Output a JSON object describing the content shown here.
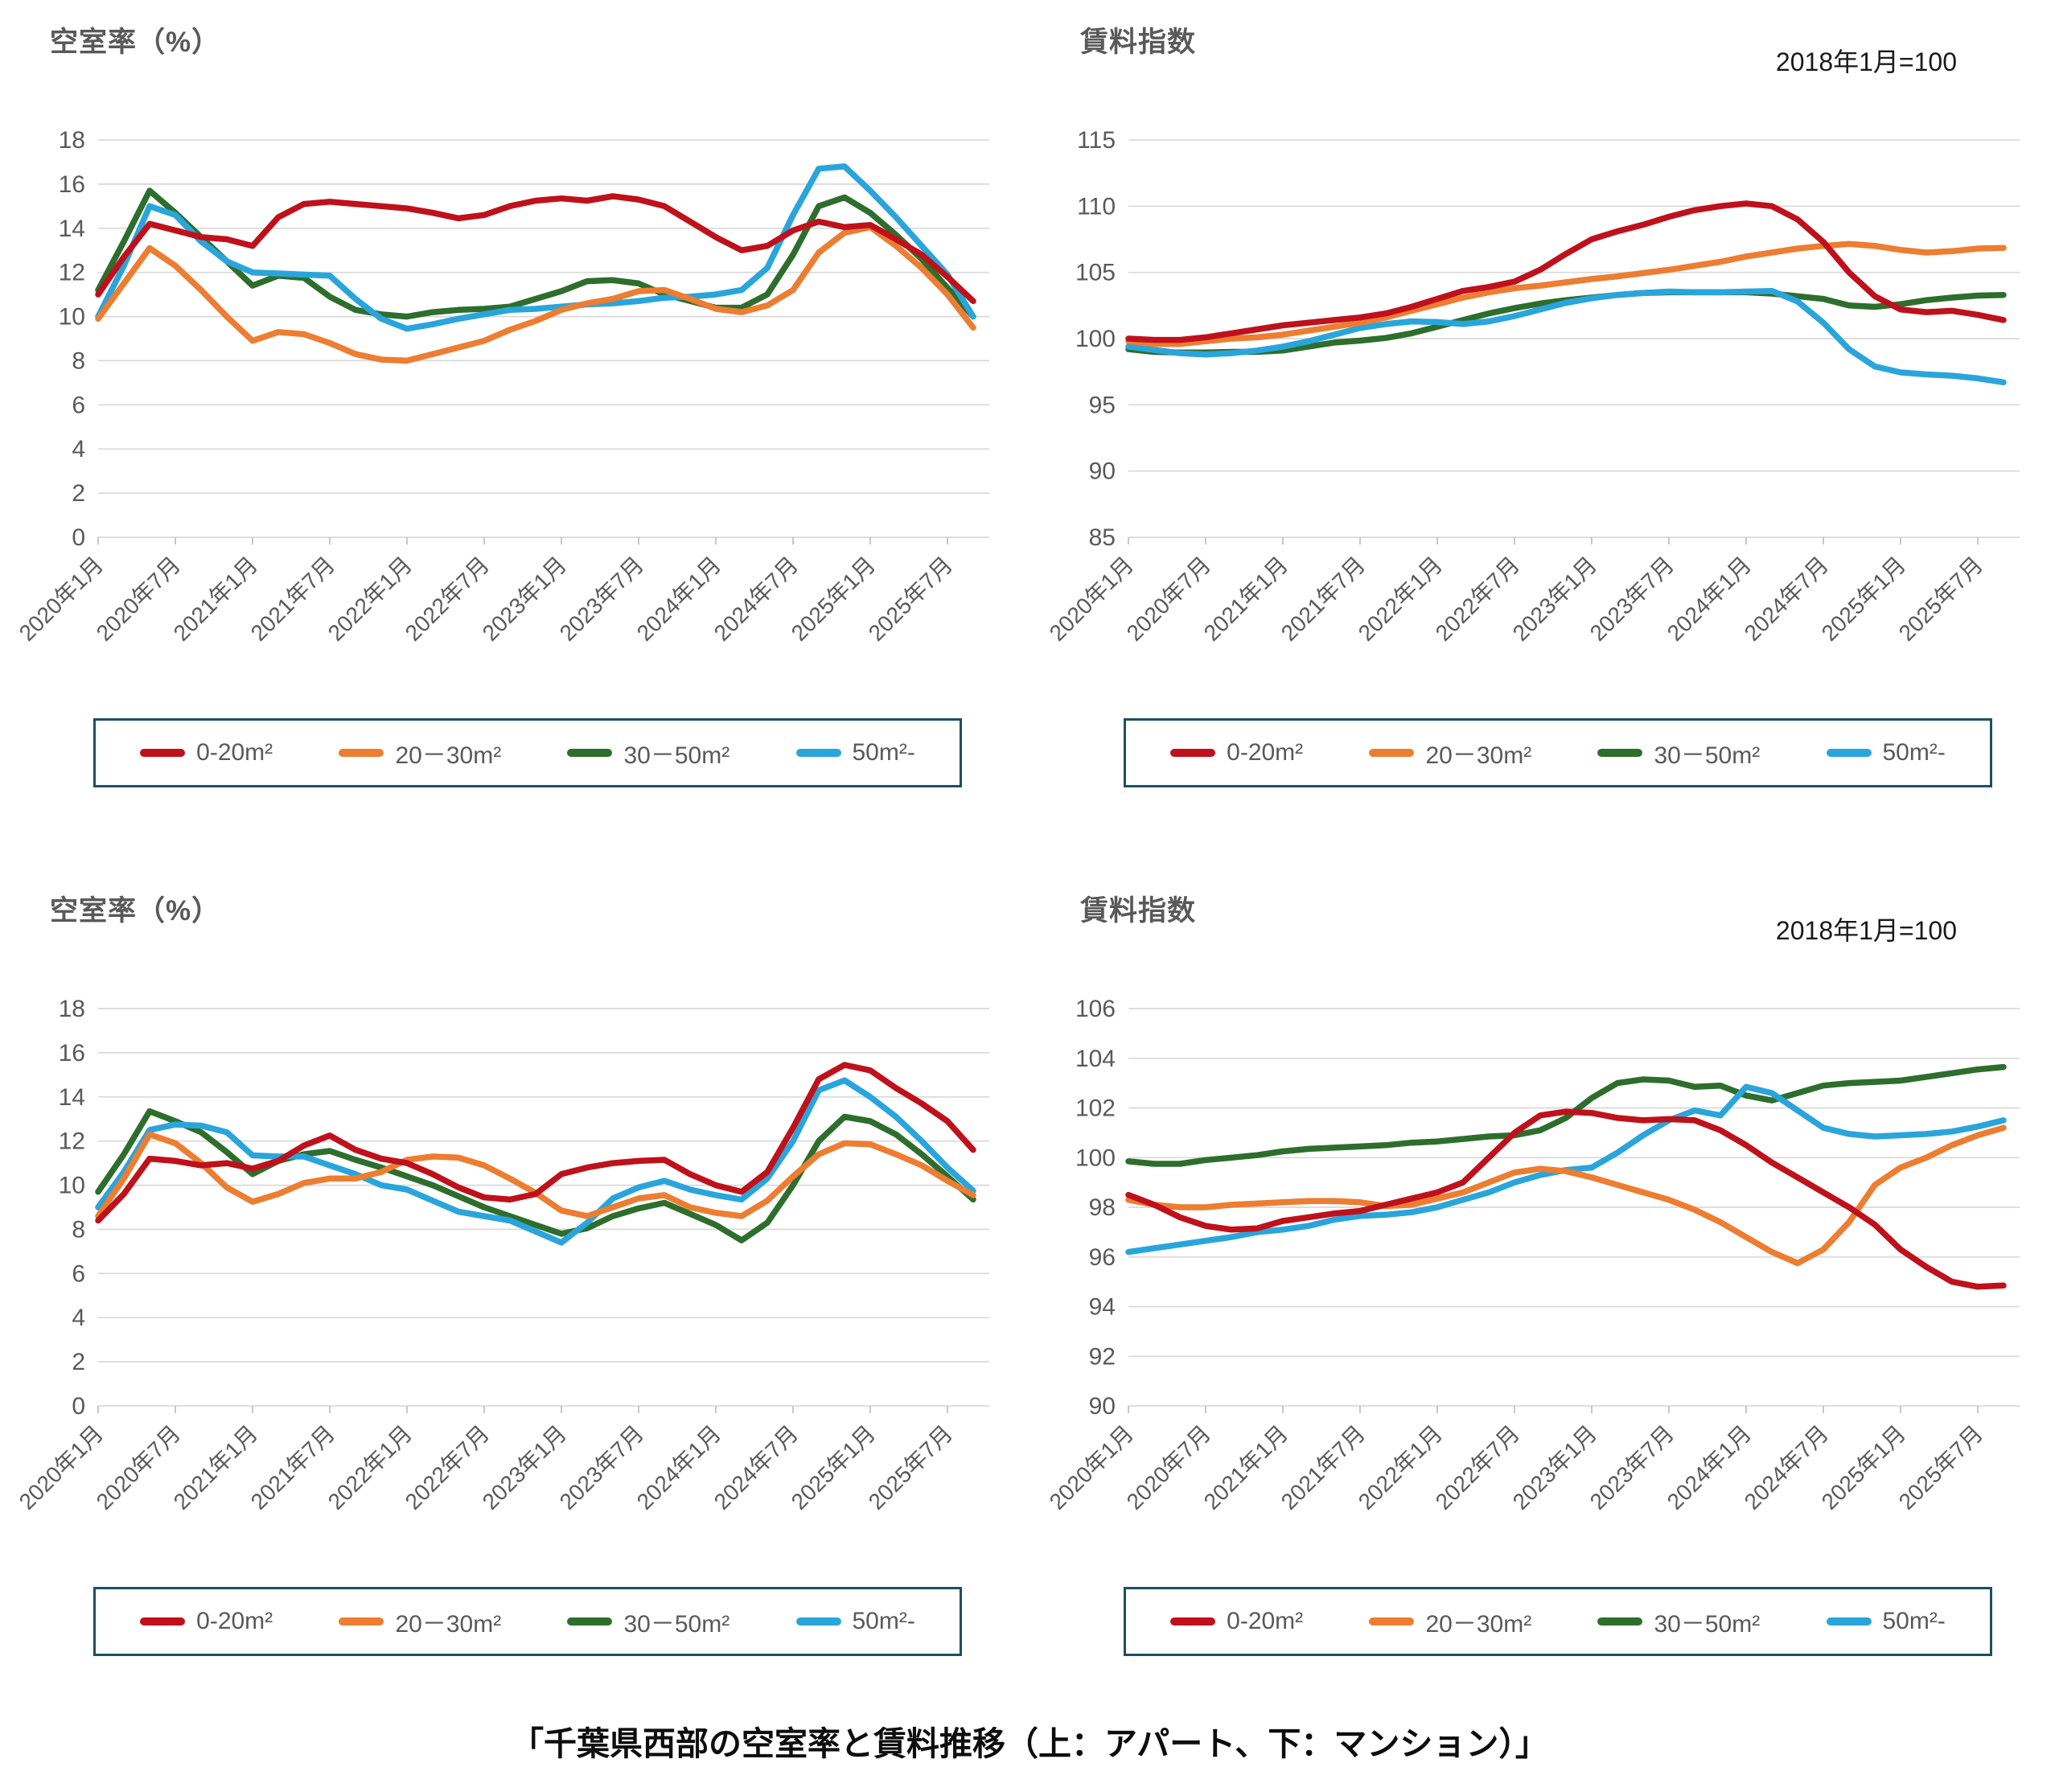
{
  "page": {
    "caption": "「千葉県西部の空室率と賃料推移（上：アパート、下：マンション）」"
  },
  "colors": {
    "red": "#BF111B",
    "orange": "#ED7D31",
    "green": "#2D6E2D",
    "blue": "#2AA5DC",
    "grid": "#D9D9D9",
    "axis_line": "#BFBFBF",
    "axis_text": "#595959",
    "title_text": "#595959",
    "note_text": "#1a1a1a",
    "legend_border": "#1E4F63"
  },
  "legend_items": [
    {
      "color_key": "red",
      "label": "0-20m²"
    },
    {
      "color_key": "orange",
      "label": "20－30m²"
    },
    {
      "color_key": "green",
      "label": "30－50m²"
    },
    {
      "color_key": "blue",
      "label": "50m²-"
    }
  ],
  "x_tick_labels": [
    "2020年1月",
    "2020年7月",
    "2021年1月",
    "2021年7月",
    "2022年1月",
    "2022年7月",
    "2023年1月",
    "2023年7月",
    "2024年1月",
    "2024年7月",
    "2025年1月",
    "2025年7月"
  ],
  "x_sampling": {
    "start": "2020-01",
    "interval_months": 2,
    "points": 35
  },
  "chart_data": [
    {
      "type": "line",
      "position": "top-left",
      "title": "空室率（%）",
      "note": "",
      "ylim": [
        0,
        18
      ],
      "ystep": 2,
      "y_ticks": [
        18,
        16,
        14,
        12,
        10,
        8,
        6,
        4,
        2,
        0
      ],
      "legend_position": "bottom",
      "grid": true,
      "series": {
        "red": [
          11.0,
          12.7,
          14.2,
          13.9,
          13.6,
          13.5,
          13.2,
          14.5,
          15.1,
          15.2,
          15.1,
          15.0,
          14.9,
          14.7,
          14.45,
          14.6,
          15.0,
          15.25,
          15.35,
          15.25,
          15.45,
          15.3,
          15.0,
          14.3,
          13.6,
          13.0,
          13.2,
          13.9,
          14.3,
          14.05,
          14.15,
          13.5,
          12.8,
          11.8,
          10.7
        ],
        "orange": [
          9.9,
          11.5,
          13.1,
          12.3,
          11.2,
          10.0,
          8.9,
          9.3,
          9.2,
          8.8,
          8.3,
          8.05,
          8.0,
          8.3,
          8.6,
          8.9,
          9.4,
          9.8,
          10.3,
          10.6,
          10.8,
          11.15,
          11.2,
          10.8,
          10.35,
          10.2,
          10.5,
          11.2,
          12.9,
          13.8,
          14.05,
          13.2,
          12.2,
          11.0,
          9.5
        ],
        "green": [
          11.2,
          13.4,
          15.7,
          14.7,
          13.6,
          12.5,
          11.4,
          11.85,
          11.75,
          10.9,
          10.3,
          10.1,
          10.0,
          10.2,
          10.3,
          10.35,
          10.45,
          10.8,
          11.15,
          11.6,
          11.65,
          11.5,
          11.0,
          10.7,
          10.4,
          10.4,
          11.0,
          12.8,
          15.0,
          15.4,
          14.7,
          13.7,
          12.6,
          11.3,
          10.0
        ],
        "blue": [
          10.0,
          12.3,
          15.0,
          14.6,
          13.4,
          12.5,
          12.0,
          11.95,
          11.9,
          11.85,
          10.8,
          9.9,
          9.45,
          9.65,
          9.9,
          10.1,
          10.3,
          10.35,
          10.45,
          10.55,
          10.6,
          10.7,
          10.85,
          10.9,
          11.0,
          11.2,
          12.2,
          14.6,
          16.7,
          16.8,
          15.7,
          14.5,
          13.2,
          11.9,
          10.0
        ]
      }
    },
    {
      "type": "line",
      "position": "top-right",
      "title": "賃料指数",
      "note": "2018年1月=100",
      "ylim": [
        85,
        115
      ],
      "ystep": 5,
      "y_ticks": [
        115,
        110,
        105,
        100,
        95,
        90,
        85
      ],
      "legend_position": "bottom",
      "grid": true,
      "series": {
        "red": [
          100.0,
          99.9,
          99.9,
          100.1,
          100.4,
          100.7,
          101.0,
          101.2,
          101.4,
          101.6,
          101.9,
          102.4,
          103.0,
          103.6,
          103.9,
          104.3,
          105.2,
          106.4,
          107.5,
          108.1,
          108.6,
          109.2,
          109.7,
          110.0,
          110.2,
          110.0,
          109.0,
          107.3,
          105.0,
          103.2,
          102.2,
          102.0,
          102.1,
          101.8,
          101.4
        ],
        "orange": [
          99.8,
          99.6,
          99.6,
          99.8,
          100.0,
          100.1,
          100.3,
          100.6,
          100.9,
          101.2,
          101.6,
          102.1,
          102.6,
          103.1,
          103.5,
          103.8,
          104.0,
          104.25,
          104.5,
          104.7,
          104.95,
          105.2,
          105.5,
          105.8,
          106.2,
          106.5,
          106.8,
          107.0,
          107.15,
          107.0,
          106.7,
          106.5,
          106.6,
          106.8,
          106.85
        ],
        "green": [
          99.2,
          99.0,
          98.95,
          98.95,
          99.0,
          99.0,
          99.1,
          99.4,
          99.7,
          99.85,
          100.05,
          100.4,
          100.9,
          101.4,
          101.9,
          102.3,
          102.65,
          102.9,
          103.1,
          103.3,
          103.45,
          103.5,
          103.5,
          103.5,
          103.5,
          103.4,
          103.2,
          103.0,
          102.5,
          102.4,
          102.6,
          102.9,
          103.1,
          103.25,
          103.3
        ],
        "blue": [
          99.4,
          99.15,
          98.9,
          98.8,
          98.9,
          99.1,
          99.4,
          99.8,
          100.3,
          100.8,
          101.1,
          101.3,
          101.25,
          101.1,
          101.3,
          101.7,
          102.2,
          102.7,
          103.05,
          103.3,
          103.45,
          103.55,
          103.5,
          103.5,
          103.55,
          103.6,
          102.8,
          101.2,
          99.2,
          97.9,
          97.45,
          97.3,
          97.2,
          97.0,
          96.7
        ]
      }
    },
    {
      "type": "line",
      "position": "bottom-left",
      "title": "空室率（%）",
      "note": "",
      "ylim": [
        0,
        18
      ],
      "ystep": 2,
      "y_ticks": [
        18,
        16,
        14,
        12,
        10,
        8,
        6,
        4,
        2,
        0
      ],
      "legend_position": "bottom",
      "grid": true,
      "series": {
        "red": [
          8.4,
          9.6,
          11.2,
          11.1,
          10.9,
          11.0,
          10.75,
          11.1,
          11.8,
          12.25,
          11.6,
          11.2,
          11.0,
          10.5,
          9.9,
          9.45,
          9.35,
          9.6,
          10.5,
          10.8,
          11.0,
          11.1,
          11.15,
          10.5,
          10.0,
          9.7,
          10.6,
          12.6,
          14.8,
          15.45,
          15.2,
          14.4,
          13.7,
          12.9,
          11.6
        ],
        "orange": [
          8.6,
          10.3,
          12.3,
          11.9,
          11.0,
          9.9,
          9.25,
          9.6,
          10.1,
          10.3,
          10.3,
          10.6,
          11.15,
          11.3,
          11.25,
          10.9,
          10.3,
          9.65,
          8.85,
          8.6,
          9.0,
          9.4,
          9.55,
          9.0,
          8.75,
          8.6,
          9.3,
          10.4,
          11.4,
          11.9,
          11.85,
          11.4,
          10.9,
          10.2,
          9.55
        ],
        "green": [
          9.7,
          11.4,
          13.35,
          12.9,
          12.4,
          11.5,
          10.5,
          11.1,
          11.4,
          11.55,
          11.15,
          10.8,
          10.4,
          10.0,
          9.5,
          9.0,
          8.6,
          8.2,
          7.8,
          8.05,
          8.6,
          8.95,
          9.2,
          8.7,
          8.2,
          7.5,
          8.3,
          10.0,
          12.0,
          13.1,
          12.9,
          12.3,
          11.4,
          10.4,
          9.35
        ],
        "blue": [
          9.0,
          10.6,
          12.5,
          12.75,
          12.7,
          12.4,
          11.35,
          11.3,
          11.3,
          10.9,
          10.5,
          10.0,
          9.8,
          9.3,
          8.8,
          8.6,
          8.4,
          7.9,
          7.4,
          8.3,
          9.4,
          9.9,
          10.2,
          9.8,
          9.55,
          9.35,
          10.3,
          12.0,
          14.3,
          14.75,
          14.0,
          13.1,
          12.0,
          10.8,
          9.75
        ]
      }
    },
    {
      "type": "line",
      "position": "bottom-right",
      "title": "賃料指数",
      "note": "2018年1月=100",
      "ylim": [
        90,
        106
      ],
      "ystep": 2,
      "y_ticks": [
        106,
        104,
        102,
        100,
        98,
        96,
        94,
        92,
        90
      ],
      "legend_position": "bottom",
      "grid": true,
      "series": {
        "red": [
          98.5,
          98.1,
          97.6,
          97.25,
          97.1,
          97.15,
          97.45,
          97.6,
          97.75,
          97.85,
          98.1,
          98.35,
          98.6,
          99.0,
          100.0,
          101.0,
          101.7,
          101.85,
          101.8,
          101.6,
          101.5,
          101.55,
          101.5,
          101.1,
          100.5,
          99.8,
          99.2,
          98.6,
          98.0,
          97.3,
          96.3,
          95.6,
          95.0,
          94.8,
          94.85
        ],
        "orange": [
          98.3,
          98.1,
          98.0,
          98.0,
          98.1,
          98.15,
          98.2,
          98.25,
          98.25,
          98.2,
          98.05,
          98.1,
          98.35,
          98.6,
          99.0,
          99.4,
          99.55,
          99.45,
          99.2,
          98.9,
          98.6,
          98.3,
          97.9,
          97.4,
          96.8,
          96.2,
          95.75,
          96.3,
          97.4,
          98.9,
          99.6,
          100.0,
          100.5,
          100.9,
          101.2
        ],
        "green": [
          99.85,
          99.75,
          99.75,
          99.9,
          100.0,
          100.1,
          100.25,
          100.35,
          100.4,
          100.45,
          100.5,
          100.6,
          100.65,
          100.75,
          100.85,
          100.9,
          101.1,
          101.6,
          102.4,
          103.0,
          103.15,
          103.1,
          102.85,
          102.9,
          102.5,
          102.3,
          102.6,
          102.9,
          103.0,
          103.05,
          103.1,
          103.25,
          103.4,
          103.55,
          103.65
        ],
        "blue": [
          96.2,
          96.35,
          96.5,
          96.65,
          96.8,
          97.0,
          97.1,
          97.25,
          97.5,
          97.65,
          97.7,
          97.8,
          98.0,
          98.3,
          98.6,
          99.0,
          99.3,
          99.5,
          99.6,
          100.2,
          100.9,
          101.5,
          101.9,
          101.7,
          102.85,
          102.6,
          101.9,
          101.2,
          100.95,
          100.85,
          100.9,
          100.95,
          101.05,
          101.25,
          101.5
        ]
      }
    }
  ]
}
